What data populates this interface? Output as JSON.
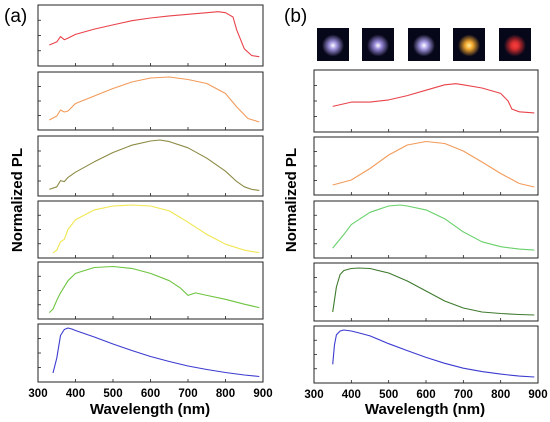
{
  "chart_data": [
    {
      "type": "line",
      "panel_label": "(a)",
      "xlabel": "Wavelength (nm)",
      "ylabel": "Normalized PL",
      "xlim": [
        300,
        900
      ],
      "x_ticks": [
        "300",
        "400",
        "500",
        "600",
        "700",
        "800",
        "900"
      ],
      "stacked": true,
      "series": [
        {
          "color": "#e8434b",
          "x": [
            330,
            350,
            360,
            370,
            380,
            400,
            450,
            500,
            550,
            600,
            650,
            700,
            750,
            780,
            800,
            820,
            830,
            850,
            870,
            890
          ],
          "values": [
            0.32,
            0.38,
            0.48,
            0.42,
            0.45,
            0.52,
            0.62,
            0.7,
            0.78,
            0.83,
            0.87,
            0.9,
            0.93,
            0.95,
            0.93,
            0.85,
            0.6,
            0.25,
            0.12,
            0.1
          ]
        },
        {
          "color": "#f29b5a",
          "x": [
            330,
            350,
            360,
            370,
            380,
            400,
            450,
            500,
            550,
            600,
            650,
            700,
            750,
            800,
            830,
            860,
            890
          ],
          "values": [
            0.12,
            0.2,
            0.32,
            0.28,
            0.3,
            0.45,
            0.6,
            0.75,
            0.88,
            0.96,
            0.98,
            0.93,
            0.85,
            0.65,
            0.38,
            0.15,
            0.08
          ]
        },
        {
          "color": "#8c8a44",
          "x": [
            330,
            350,
            360,
            370,
            380,
            400,
            450,
            500,
            550,
            600,
            625,
            650,
            700,
            750,
            800,
            830,
            850,
            870,
            890
          ],
          "values": [
            0.05,
            0.1,
            0.22,
            0.2,
            0.28,
            0.38,
            0.58,
            0.76,
            0.9,
            0.98,
            1.0,
            0.97,
            0.85,
            0.65,
            0.4,
            0.2,
            0.1,
            0.05,
            0.03
          ]
        },
        {
          "color": "#f0e650",
          "x": [
            340,
            350,
            360,
            370,
            380,
            400,
            450,
            500,
            550,
            600,
            650,
            700,
            750,
            800,
            850,
            870,
            890
          ],
          "values": [
            0.02,
            0.08,
            0.25,
            0.3,
            0.5,
            0.7,
            0.9,
            0.98,
            1.0,
            0.98,
            0.88,
            0.65,
            0.4,
            0.2,
            0.08,
            0.05,
            0.03
          ]
        },
        {
          "color": "#6dc440",
          "x": [
            330,
            340,
            350,
            360,
            380,
            400,
            450,
            500,
            550,
            600,
            650,
            680,
            700,
            720,
            750,
            800,
            850,
            890
          ],
          "values": [
            0.05,
            0.12,
            0.3,
            0.45,
            0.7,
            0.85,
            0.97,
            0.99,
            0.95,
            0.85,
            0.7,
            0.55,
            0.4,
            0.45,
            0.4,
            0.32,
            0.22,
            0.15
          ]
        },
        {
          "color": "#3b3bd0",
          "x": [
            340,
            350,
            360,
            370,
            380,
            390,
            400,
            450,
            500,
            550,
            600,
            650,
            700,
            750,
            800,
            850,
            890
          ],
          "values": [
            0.1,
            0.4,
            0.85,
            0.97,
            1.0,
            0.98,
            0.95,
            0.82,
            0.68,
            0.55,
            0.43,
            0.33,
            0.24,
            0.17,
            0.11,
            0.06,
            0.03
          ]
        }
      ]
    },
    {
      "type": "line",
      "panel_label": "(b)",
      "xlabel": "Wavelength (nm)",
      "ylabel": "Normalized PL",
      "xlim": [
        300,
        900
      ],
      "x_ticks": [
        "300",
        "400",
        "500",
        "600",
        "700",
        "800",
        "900"
      ],
      "stacked": true,
      "series": [
        {
          "color": "#e8434b",
          "x": [
            350,
            400,
            450,
            500,
            550,
            600,
            650,
            680,
            700,
            750,
            800,
            820,
            830,
            850,
            890
          ],
          "values": [
            0.4,
            0.48,
            0.48,
            0.52,
            0.6,
            0.7,
            0.8,
            0.82,
            0.8,
            0.74,
            0.64,
            0.5,
            0.35,
            0.3,
            0.28
          ]
        },
        {
          "color": "#f29b5a",
          "x": [
            350,
            400,
            450,
            500,
            550,
            600,
            650,
            700,
            750,
            800,
            850,
            890
          ],
          "values": [
            0.12,
            0.22,
            0.45,
            0.72,
            0.92,
            0.99,
            0.95,
            0.8,
            0.58,
            0.35,
            0.15,
            0.08
          ]
        },
        {
          "color": "#68d06a",
          "x": [
            350,
            380,
            400,
            450,
            500,
            530,
            550,
            600,
            650,
            700,
            750,
            800,
            850,
            890
          ],
          "values": [
            0.12,
            0.4,
            0.6,
            0.85,
            0.98,
            1.0,
            0.98,
            0.9,
            0.72,
            0.45,
            0.25,
            0.15,
            0.1,
            0.08
          ]
        },
        {
          "color": "#3e7a2e",
          "x": [
            350,
            360,
            370,
            380,
            400,
            420,
            450,
            500,
            550,
            600,
            650,
            700,
            750,
            800,
            850,
            890
          ],
          "values": [
            0.1,
            0.6,
            0.85,
            0.93,
            0.97,
            0.98,
            0.97,
            0.88,
            0.72,
            0.52,
            0.32,
            0.18,
            0.1,
            0.07,
            0.05,
            0.04
          ]
        },
        {
          "color": "#3b3bd0",
          "x": [
            350,
            355,
            360,
            370,
            380,
            400,
            420,
            450,
            500,
            550,
            600,
            650,
            700,
            750,
            800,
            850,
            890
          ],
          "values": [
            0.3,
            0.7,
            0.9,
            0.98,
            1.0,
            0.98,
            0.94,
            0.88,
            0.72,
            0.58,
            0.44,
            0.32,
            0.22,
            0.15,
            0.1,
            0.06,
            0.04
          ]
        }
      ]
    }
  ],
  "insets": [
    {
      "color": "#a79ae8",
      "core": "#ffffff"
    },
    {
      "color": "#9c8de0",
      "core": "#ffffff"
    },
    {
      "color": "#b0a4f0",
      "core": "#ffffff"
    },
    {
      "color": "#ffb030",
      "core": "#fff2a0"
    },
    {
      "color": "#e23030",
      "core": "#ff4040"
    }
  ]
}
